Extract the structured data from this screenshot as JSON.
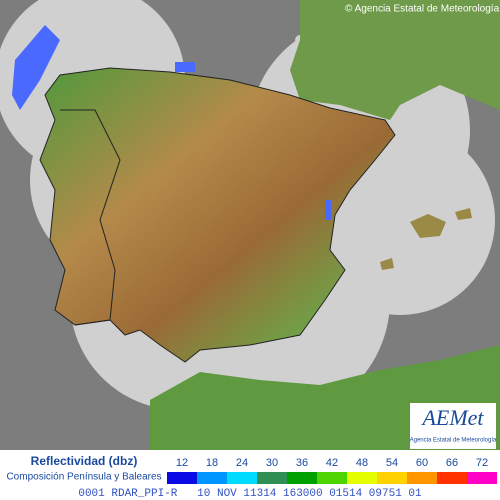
{
  "copyright": "© Agencia Estatal de Meteorología",
  "logo": {
    "name": "AEMet",
    "subtitle": "Agencia Estatal de Meteorología"
  },
  "legend": {
    "title": "Reflectividad (dbz)",
    "subtitle": "Composición Península y Baleares",
    "ticks": [
      12,
      18,
      24,
      30,
      36,
      42,
      48,
      54,
      60,
      66,
      72
    ],
    "colors": [
      "#0a0ae6",
      "#0096ff",
      "#00dcff",
      "#2f8f55",
      "#00a000",
      "#4ed400",
      "#e6ff00",
      "#ffd200",
      "#ff9600",
      "#ff3200",
      "#ff00c8"
    ]
  },
  "status_bar": "0001 RDAR_PPI-R   10 NOV 11314 163000 01514 09751 01"
}
